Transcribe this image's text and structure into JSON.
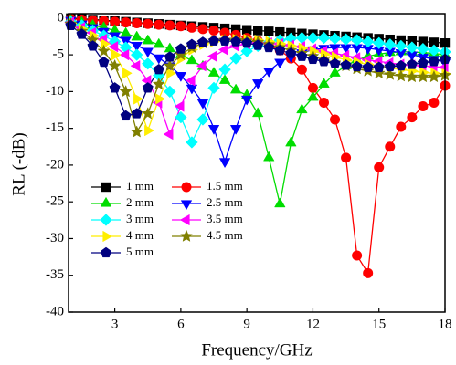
{
  "chart_data": {
    "type": "line",
    "x_label": "Frequency/GHz",
    "y_label": "RL (-dB)",
    "x": [
      1,
      1.5,
      2,
      2.5,
      3,
      3.5,
      4,
      4.5,
      5,
      5.5,
      6,
      6.5,
      7,
      7.5,
      8,
      8.5,
      9,
      9.5,
      10,
      10.5,
      11,
      11.5,
      12,
      12.5,
      13,
      13.5,
      14,
      14.5,
      15,
      15.5,
      16,
      16.5,
      17,
      17.5,
      18
    ],
    "xlim": [
      0.9,
      18
    ],
    "xticks": [
      3,
      6,
      9,
      12,
      15,
      18
    ],
    "ylim": [
      -40,
      0.6
    ],
    "yticks": [
      0,
      -5,
      -10,
      -15,
      -20,
      -25,
      -30,
      -35,
      -40
    ],
    "series": [
      {
        "name": "1 mm",
        "color": "#000000",
        "marker": "square",
        "values": [
          0,
          -0.1,
          -0.2,
          -0.3,
          -0.4,
          -0.5,
          -0.6,
          -0.7,
          -0.8,
          -0.9,
          -1.0,
          -1.1,
          -1.2,
          -1.3,
          -1.4,
          -1.5,
          -1.6,
          -1.7,
          -1.8,
          -1.9,
          -2.0,
          -2.1,
          -2.2,
          -2.3,
          -2.4,
          -2.5,
          -2.6,
          -2.7,
          -2.8,
          -2.9,
          -3.0,
          -3.1,
          -3.2,
          -3.3,
          -3.4
        ]
      },
      {
        "name": "1.5 mm",
        "color": "#ff0000",
        "marker": "circle",
        "values": [
          -0.1,
          -0.2,
          -0.3,
          -0.4,
          -0.5,
          -0.6,
          -0.7,
          -0.8,
          -0.9,
          -1.0,
          -1.1,
          -1.3,
          -1.5,
          -1.7,
          -2.0,
          -2.3,
          -2.7,
          -3.1,
          -3.7,
          -4.4,
          -5.5,
          -7.0,
          -9.5,
          -11.5,
          -13.8,
          -19.0,
          -32.3,
          -34.7,
          -20.3,
          -17.5,
          -14.8,
          -13.5,
          -12.0,
          -11.5,
          -9.2
        ]
      },
      {
        "name": "2 mm",
        "color": "#00dd00",
        "marker": "triangle-up",
        "values": [
          -0.3,
          -0.6,
          -1,
          -1.3,
          -1.7,
          -2.1,
          -2.6,
          -3.1,
          -3.6,
          -4.2,
          -5,
          -5.8,
          -6.6,
          -7.5,
          -8.5,
          -9.8,
          -10.5,
          -13,
          -19,
          -25.3,
          -17,
          -12.5,
          -10.8,
          -9,
          -7.5,
          -6.5,
          -5.7,
          -5.2,
          -4.9,
          -4.7,
          -4.6,
          -4.6,
          -4.7,
          -4.8,
          -5
        ]
      },
      {
        "name": "2.5 mm",
        "color": "#0000ff",
        "marker": "triangle-down",
        "values": [
          -0.3,
          -0.8,
          -1.3,
          -1.8,
          -2.4,
          -3,
          -3.7,
          -4.5,
          -5.4,
          -6.5,
          -7.8,
          -9.5,
          -11.5,
          -15,
          -19.5,
          -15,
          -11,
          -8.8,
          -7.2,
          -6,
          -5.2,
          -4.7,
          -4.3,
          -4.1,
          -4,
          -4,
          -4,
          -4.1,
          -4.3,
          -4.5,
          -4.7,
          -5,
          -5.3,
          -5.6,
          -6
        ]
      },
      {
        "name": "3 mm",
        "color": "#00ffff",
        "marker": "diamond",
        "values": [
          -0.5,
          -1,
          -1.7,
          -2.4,
          -3.2,
          -4,
          -5,
          -6.2,
          -7.8,
          -10,
          -13.5,
          -16.9,
          -13.8,
          -9.5,
          -7,
          -5.5,
          -4.5,
          -3.8,
          -3.3,
          -3,
          -2.8,
          -2.7,
          -2.7,
          -2.7,
          -2.8,
          -2.9,
          -3,
          -3.2,
          -3.4,
          -3.6,
          -3.8,
          -4,
          -4.2,
          -4.4,
          -4.6
        ]
      },
      {
        "name": "3.5 mm",
        "color": "#ff00ff",
        "marker": "triangle-left",
        "values": [
          -0.6,
          -1.3,
          -2,
          -2.9,
          -3.9,
          -5,
          -6.5,
          -8.5,
          -11.5,
          -15.8,
          -12,
          -8.5,
          -6.5,
          -5.2,
          -4.3,
          -3.8,
          -3.5,
          -3.4,
          -3.4,
          -3.5,
          -3.7,
          -3.9,
          -4.2,
          -4.5,
          -4.8,
          -5.1,
          -5.4,
          -5.7,
          -5.9,
          -6.1,
          -6.3,
          -6.4,
          -6.5,
          -6.6,
          -6.7
        ]
      },
      {
        "name": "4 mm",
        "color": "#ffee00",
        "marker": "triangle-right",
        "values": [
          -0.7,
          -1.5,
          -2.4,
          -3.5,
          -5,
          -7.5,
          -11,
          -15.3,
          -11,
          -7.5,
          -5.5,
          -4.3,
          -3.6,
          -3.2,
          -3,
          -2.9,
          -2.9,
          -3,
          -3.2,
          -3.5,
          -3.8,
          -4.1,
          -4.5,
          -4.9,
          -5.3,
          -5.7,
          -6,
          -6.3,
          -6.6,
          -6.8,
          -7,
          -7.2,
          -7.4,
          -7.5,
          -7.6
        ]
      },
      {
        "name": "4.5 mm",
        "color": "#808000",
        "marker": "star",
        "values": [
          -0.8,
          -1.8,
          -3,
          -4.5,
          -6.5,
          -10,
          -15.5,
          -13,
          -9,
          -6.5,
          -5,
          -4,
          -3.4,
          -3.1,
          -3,
          -3,
          -3.1,
          -3.3,
          -3.6,
          -4,
          -4.4,
          -4.8,
          -5.2,
          -5.7,
          -6.1,
          -6.5,
          -6.9,
          -7.2,
          -7.5,
          -7.7,
          -7.9,
          -8,
          -8,
          -8,
          -7.8
        ]
      },
      {
        "name": "5 mm",
        "color": "#000080",
        "marker": "pentagon",
        "values": [
          -1,
          -2.2,
          -3.8,
          -6,
          -9.5,
          -13.3,
          -13,
          -9.5,
          -7,
          -5.3,
          -4.2,
          -3.6,
          -3.3,
          -3.1,
          -3.1,
          -3.2,
          -3.4,
          -3.7,
          -4,
          -4.4,
          -4.8,
          -5.2,
          -5.6,
          -5.9,
          -6.2,
          -6.4,
          -6.6,
          -6.7,
          -6.7,
          -6.6,
          -6.5,
          -6.3,
          -6.1,
          -5.9,
          -5.6
        ]
      }
    ]
  }
}
